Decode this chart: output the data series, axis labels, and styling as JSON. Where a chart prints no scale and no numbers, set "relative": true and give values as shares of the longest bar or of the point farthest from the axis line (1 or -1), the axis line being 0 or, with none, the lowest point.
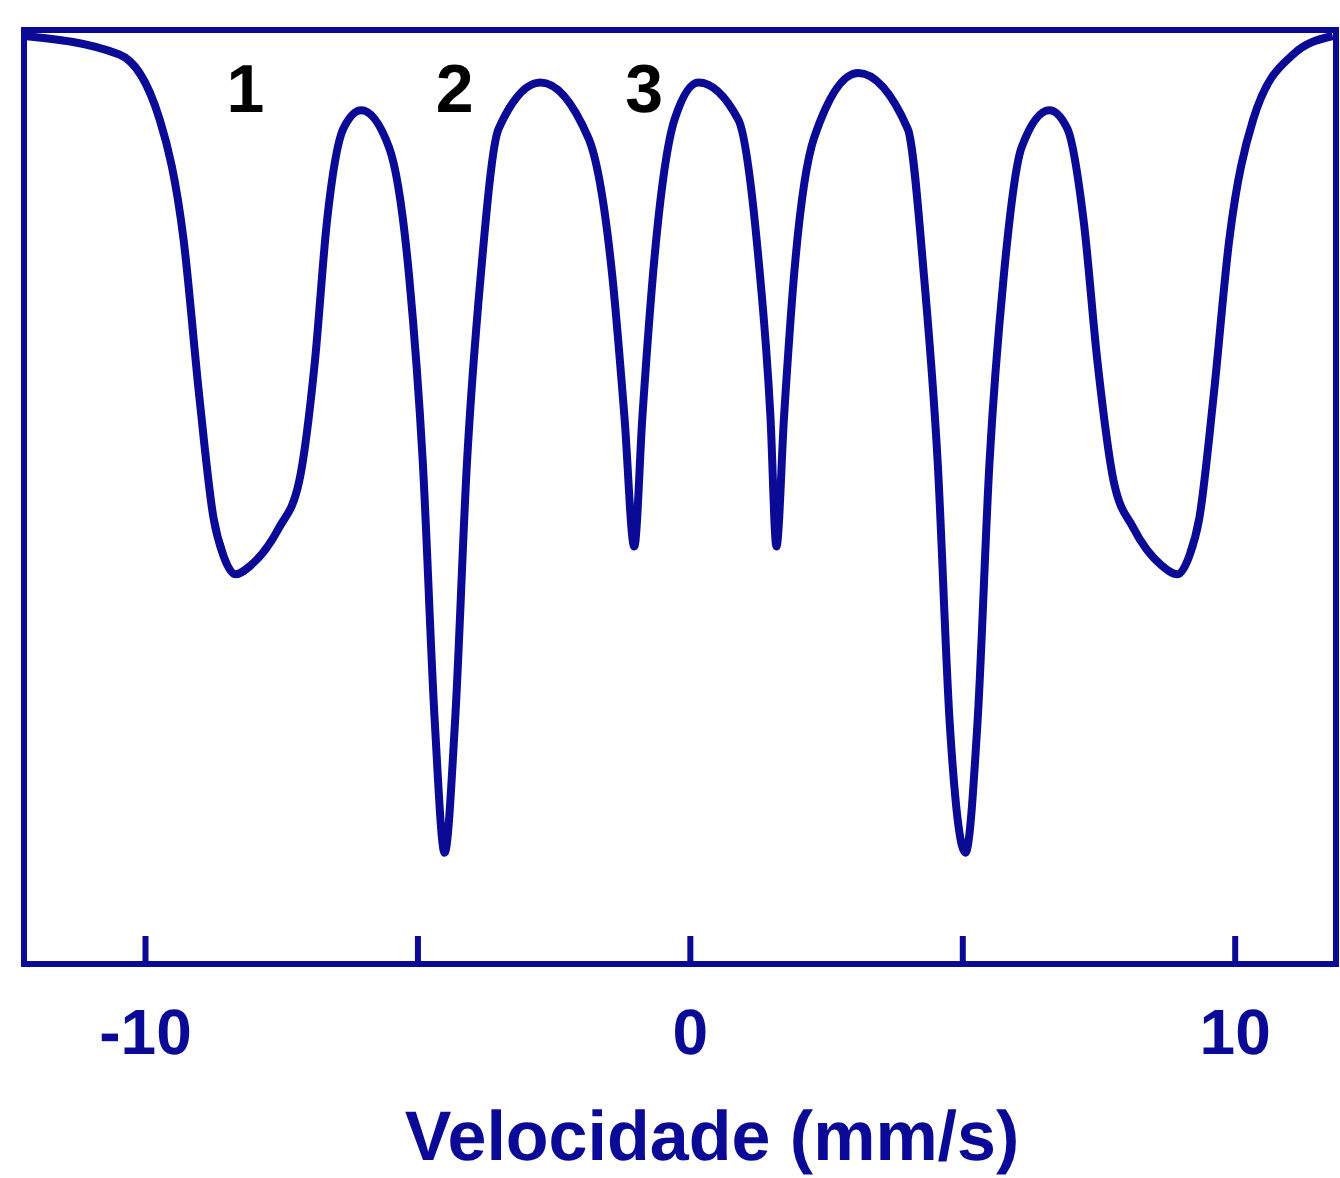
{
  "chart_data": {
    "type": "line",
    "relative": true,
    "xlabel": "Velocidade (mm/s)",
    "xlim": [
      -12.23,
      11.85
    ],
    "xticks": [
      -10,
      {
        "value": -5,
        "label": null
      },
      0,
      {
        "value": 5,
        "label": null
      },
      10
    ],
    "grid": false,
    "marker": "none",
    "line_style": "solid",
    "annotations": [
      "1",
      "2",
      "3"
    ],
    "x": [
      -12.23,
      -10.48,
      -9.74,
      -9.3,
      -9.01,
      -8.75,
      -8.57,
      -8.35,
      -8.06,
      -7.55,
      -7.18,
      -6.89,
      -6.67,
      -6.37,
      -6.04,
      -5.53,
      -5.16,
      -4.91,
      -4.69,
      -4.51,
      -4.32,
      -4.1,
      -3.85,
      -3.52,
      -2.75,
      -1.87,
      -1.43,
      -1.21,
      -1.03,
      -0.88,
      -0.66,
      -0.29,
      0.15,
      0.88,
      1.25,
      1.47,
      1.58,
      1.72,
      1.9,
      2.27,
      3.08,
      3.99,
      4.29,
      4.54,
      4.76,
      5.05,
      5.27,
      5.49,
      5.75,
      6.08,
      6.59,
      6.92,
      7.22,
      7.47,
      7.77,
      8.13,
      8.64,
      8.94,
      9.16,
      9.34,
      9.6,
      9.89,
      10.33,
      11.06,
      11.79
    ],
    "series": [
      {
        "color": "#0a0a96",
        "values": [
          1.0,
          0.98,
          0.91,
          0.78,
          0.61,
          0.48,
          0.44,
          0.42,
          0.43,
          0.47,
          0.52,
          0.65,
          0.8,
          0.9,
          0.92,
          0.88,
          0.74,
          0.54,
          0.26,
          0.12,
          0.26,
          0.54,
          0.74,
          0.9,
          0.95,
          0.89,
          0.74,
          0.59,
          0.45,
          0.59,
          0.76,
          0.91,
          0.95,
          0.91,
          0.76,
          0.59,
          0.45,
          0.59,
          0.74,
          0.89,
          0.96,
          0.9,
          0.74,
          0.54,
          0.26,
          0.12,
          0.26,
          0.54,
          0.74,
          0.88,
          0.92,
          0.9,
          0.8,
          0.65,
          0.52,
          0.47,
          0.43,
          0.42,
          0.44,
          0.48,
          0.61,
          0.78,
          0.91,
          0.98,
          1.0
        ]
      }
    ]
  }
}
